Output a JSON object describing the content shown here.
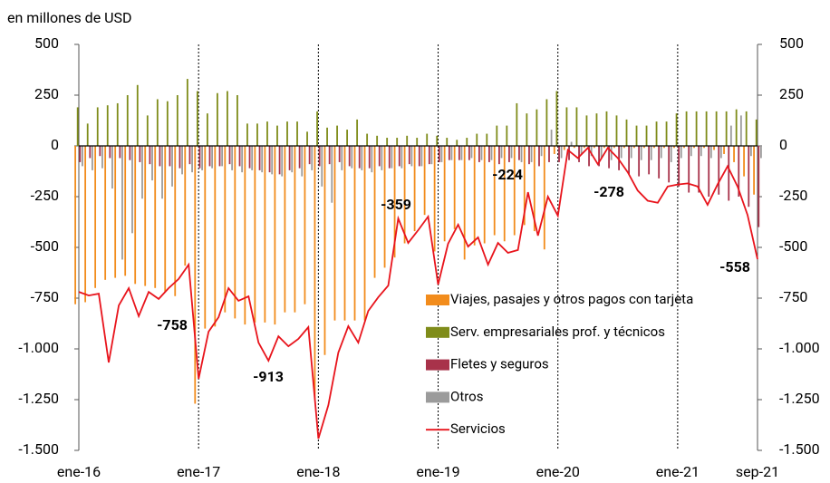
{
  "chart_data": {
    "type": "bar_line",
    "ylabel": "en millones de USD",
    "categories": [
      "ene-16",
      null,
      null,
      null,
      null,
      null,
      null,
      null,
      null,
      null,
      null,
      null,
      "ene-17",
      null,
      null,
      null,
      null,
      null,
      null,
      null,
      null,
      null,
      null,
      null,
      "ene-18",
      null,
      null,
      null,
      null,
      null,
      null,
      null,
      null,
      null,
      null,
      null,
      "ene-19",
      null,
      null,
      null,
      null,
      null,
      null,
      null,
      null,
      null,
      null,
      null,
      "ene-20",
      null,
      null,
      null,
      null,
      null,
      null,
      null,
      null,
      null,
      null,
      null,
      "ene-21",
      null,
      null,
      null,
      null,
      null,
      null,
      null,
      "sep-21"
    ],
    "series": [
      {
        "name": "Viajes, pasajes y otros pagos con tarjeta",
        "type": "bar",
        "color": "#f28c1c",
        "values": [
          -780,
          -770,
          -700,
          -660,
          -650,
          -640,
          -680,
          -690,
          -700,
          -720,
          -740,
          -590,
          -1270,
          -900,
          -890,
          -820,
          -850,
          -880,
          -870,
          -870,
          -880,
          -820,
          -820,
          -780,
          -1250,
          -1030,
          -860,
          -860,
          -860,
          -860,
          -650,
          -600,
          -550,
          -480,
          -420,
          -340,
          -520,
          -470,
          -410,
          -560,
          -490,
          -480,
          -440,
          -470,
          -440,
          -390,
          -420,
          -510,
          -40,
          -20,
          -10,
          -10,
          -10,
          -10,
          -10,
          -10,
          -10,
          -10,
          -10,
          -10,
          -10,
          -10,
          -10,
          -10,
          -20,
          -40,
          -80,
          -150,
          -240
        ]
      },
      {
        "name": "Serv. empresariales prof. y técnicos",
        "type": "bar",
        "color": "#7f8c1a",
        "values": [
          190,
          110,
          190,
          200,
          210,
          250,
          300,
          150,
          230,
          220,
          250,
          330,
          270,
          160,
          260,
          270,
          250,
          110,
          110,
          120,
          100,
          120,
          120,
          70,
          170,
          90,
          100,
          80,
          130,
          60,
          50,
          40,
          40,
          50,
          40,
          60,
          50,
          40,
          30,
          40,
          60,
          60,
          100,
          100,
          210,
          160,
          180,
          230,
          270,
          190,
          190,
          150,
          160,
          170,
          150,
          130,
          100,
          100,
          120,
          120,
          160,
          170,
          170,
          170,
          170,
          170,
          180,
          170,
          130
        ]
      },
      {
        "name": "Fletes y seguros",
        "type": "bar",
        "color": "#a8324a",
        "values": [
          -80,
          -60,
          -50,
          -60,
          -60,
          -70,
          -80,
          -90,
          -100,
          -100,
          -110,
          -90,
          -110,
          -100,
          -100,
          -90,
          -100,
          -110,
          -120,
          -130,
          -140,
          -120,
          -110,
          -90,
          -100,
          -90,
          -80,
          -100,
          -110,
          -110,
          -100,
          -110,
          -100,
          -90,
          -100,
          -90,
          -80,
          -70,
          -70,
          -70,
          -80,
          -80,
          -90,
          -80,
          -70,
          -90,
          -100,
          -80,
          -80,
          -70,
          -80,
          -100,
          -100,
          -110,
          -120,
          -140,
          -150,
          -140,
          -160,
          -180,
          -200,
          -230,
          -230,
          -250,
          -240,
          -270,
          -250,
          -300,
          -400
        ]
      },
      {
        "name": "Otros",
        "type": "bar",
        "color": "#9b9b9b",
        "values": [
          -100,
          -120,
          -110,
          -210,
          -560,
          -430,
          -260,
          -170,
          -260,
          -200,
          -140,
          -130,
          -120,
          -110,
          -100,
          -120,
          -130,
          -120,
          -130,
          -140,
          -150,
          -130,
          -150,
          -120,
          -200,
          -280,
          -120,
          -110,
          -120,
          -130,
          -120,
          -110,
          -110,
          -100,
          -100,
          -90,
          -80,
          -70,
          -70,
          -60,
          -70,
          -70,
          -60,
          -60,
          -80,
          -80,
          -50,
          80,
          -60,
          20,
          -40,
          -50,
          -60,
          -70,
          -60,
          -60,
          -70,
          -70,
          -60,
          -80,
          -60,
          -50,
          -50,
          -60,
          -60,
          100,
          150,
          -50,
          -60
        ]
      },
      {
        "name": "Servicios",
        "type": "line",
        "color": "#e8141c",
        "values": [
          -719,
          -737,
          -728,
          -1067,
          -786,
          -701,
          -839,
          -719,
          -754,
          -701,
          -656,
          -585,
          -1147,
          -915,
          -844,
          -701,
          -763,
          -741,
          -969,
          -1058,
          -938,
          -987,
          -951,
          -893,
          -1442,
          -1277,
          -1018,
          -888,
          -969,
          -813,
          -746,
          -688,
          -357,
          -478,
          -415,
          -348,
          -683,
          -482,
          -388,
          -496,
          -451,
          -585,
          -478,
          -527,
          -513,
          -228,
          -442,
          -250,
          -344,
          -20,
          -60,
          -10,
          -90,
          -10,
          -60,
          -130,
          -220,
          -270,
          -280,
          -200,
          -190,
          -185,
          -200,
          -290,
          -190,
          -100,
          -200,
          -340,
          -558
        ]
      }
    ],
    "annotations": [
      "-758",
      "-913",
      "-359",
      "-224",
      "-278",
      "-558"
    ],
    "ylim": [
      -1500,
      500
    ],
    "yticks": [
      {
        "value": -1500,
        "label": "-1.500"
      },
      {
        "value": -1250,
        "label": "-1.250"
      },
      {
        "value": -1000,
        "label": "-1.000"
      },
      -750,
      -500,
      -250,
      0,
      250,
      500
    ]
  }
}
